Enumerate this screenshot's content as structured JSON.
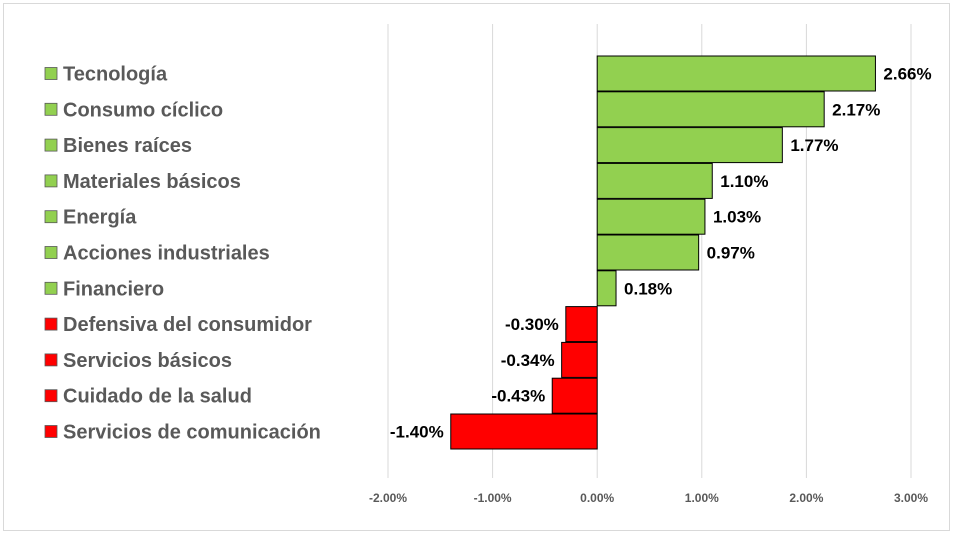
{
  "chart_data": {
    "type": "bar",
    "orientation": "horizontal",
    "categories": [
      "Tecnología",
      "Consumo cíclico",
      "Bienes raíces",
      "Materiales básicos",
      "Energía",
      "Acciones industriales",
      "Financiero",
      "Defensiva del consumidor",
      "Servicios básicos",
      "Cuidado de la salud",
      "Servicios de comunicación"
    ],
    "values": [
      2.66,
      2.17,
      1.77,
      1.1,
      1.03,
      0.97,
      0.18,
      -0.3,
      -0.34,
      -0.43,
      -1.4
    ],
    "value_labels": [
      "2.66%",
      "2.17%",
      "1.77%",
      "1.10%",
      "1.03%",
      "0.97%",
      "0.18%",
      "-0.30%",
      "-0.34%",
      "-0.43%",
      "-1.40%"
    ],
    "xlim": [
      -2,
      3
    ],
    "x_ticks": [
      -2,
      -1,
      0,
      1,
      2,
      3
    ],
    "x_tick_labels": [
      "-2.00%",
      "-1.00%",
      "0.00%",
      "1.00%",
      "2.00%",
      "3.00%"
    ],
    "grid": "vertical",
    "legend": "left",
    "colors": {
      "positive": "#92d050",
      "negative": "#ff0000",
      "grid": "#d9d9d9",
      "bar_border": "#000000"
    },
    "title": "",
    "xlabel": "",
    "ylabel": ""
  }
}
